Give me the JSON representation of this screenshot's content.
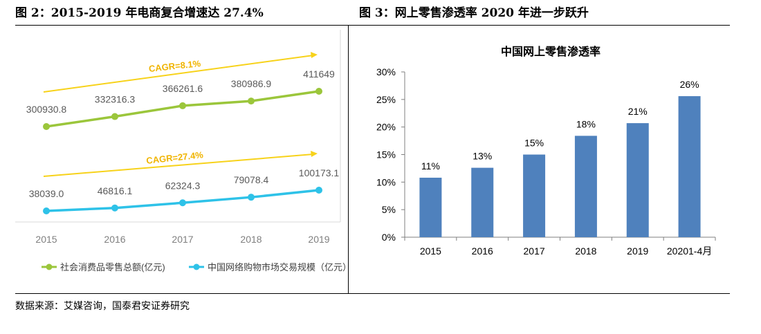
{
  "figure_titles": {
    "left": "图 2：2015-2019 年电商复合增速达 27.4%",
    "right": "图 3：网上零售渗透率 2020 年进一步跃升"
  },
  "source_note": "数据来源：艾媒咨询，国泰君安证券研究",
  "colors": {
    "green": "#9bc63b",
    "cyan": "#2ec2e8",
    "yellow_arrow": "#f7d21a",
    "cagr_text": "#f0b400",
    "bar": "#4f81bd",
    "axis_text_gray": "#7f7f7f"
  },
  "chart_data": [
    {
      "type": "line",
      "title": "",
      "xlabel": "",
      "ylabel": "",
      "x": [
        "2015",
        "2016",
        "2017",
        "2018",
        "2019"
      ],
      "series": [
        {
          "name": "社会消费品零售总额(亿元)",
          "color": "green",
          "values": [
            300930.8,
            332316.3,
            366261.6,
            380986.9,
            411649
          ],
          "labels": [
            "300930.8",
            "332316.3",
            "366261.6",
            "380986.9",
            "411649"
          ],
          "cagr_label": "CAGR=8.1%"
        },
        {
          "name": "中国网络购物市场交易规模（亿元）",
          "color": "cyan",
          "values": [
            38039.0,
            46816.1,
            62324.3,
            79078.4,
            100173.1
          ],
          "labels": [
            "38039.0",
            "46816.1",
            "62324.3",
            "79078.4",
            "100173.1"
          ],
          "cagr_label": "CAGR=27.4%"
        }
      ],
      "legend": "bottom",
      "grid": false
    },
    {
      "type": "bar",
      "title": "中国网上零售渗透率",
      "xlabel": "",
      "ylabel": "",
      "categories": [
        "2015",
        "2016",
        "2017",
        "2018",
        "2019",
        "20201-4月"
      ],
      "values": [
        10.8,
        12.6,
        15.0,
        18.4,
        20.7,
        25.6
      ],
      "data_labels": [
        "11%",
        "13%",
        "15%",
        "18%",
        "21%",
        "26%"
      ],
      "yticks": [
        "0%",
        "5%",
        "10%",
        "15%",
        "20%",
        "25%",
        "30%"
      ],
      "ylim": [
        0,
        30
      ],
      "grid": false,
      "legend": "none"
    }
  ]
}
